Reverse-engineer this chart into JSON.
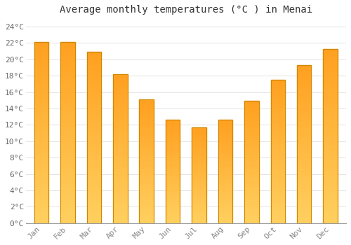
{
  "title": "Average monthly temperatures (°C ) in Menai",
  "months": [
    "Jan",
    "Feb",
    "Mar",
    "Apr",
    "May",
    "Jun",
    "Jul",
    "Aug",
    "Sep",
    "Oct",
    "Nov",
    "Dec"
  ],
  "temperatures": [
    22.1,
    22.1,
    20.9,
    18.2,
    15.1,
    12.6,
    11.7,
    12.6,
    14.9,
    17.5,
    19.3,
    21.3
  ],
  "bar_color_top": "#FFA020",
  "bar_color_bottom": "#FFD060",
  "bar_edge_color": "#CC8800",
  "ylim": [
    0,
    25
  ],
  "yticks": [
    0,
    2,
    4,
    6,
    8,
    10,
    12,
    14,
    16,
    18,
    20,
    22,
    24
  ],
  "ytick_labels": [
    "0°C",
    "2°C",
    "4°C",
    "6°C",
    "8°C",
    "10°C",
    "12°C",
    "14°C",
    "16°C",
    "18°C",
    "20°C",
    "22°C",
    "24°C"
  ],
  "background_color": "#FFFFFF",
  "grid_color": "#DDDDDD",
  "title_fontsize": 10,
  "tick_fontsize": 8,
  "font_family": "monospace",
  "bar_width": 0.55
}
